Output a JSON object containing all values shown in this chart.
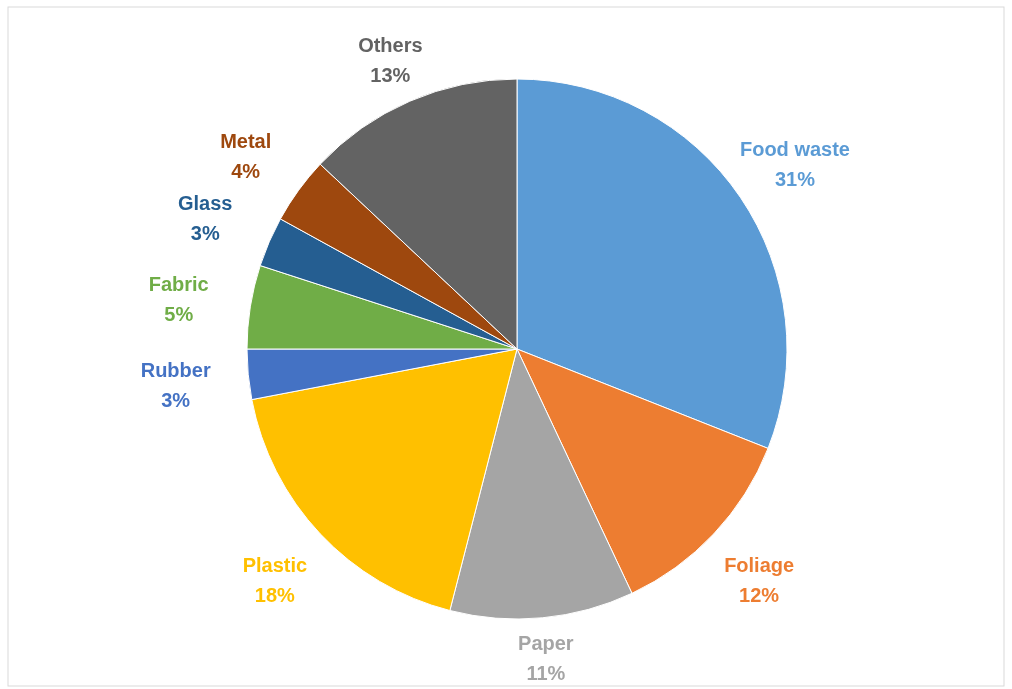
{
  "chart_data": {
    "type": "pie",
    "categories": [
      "Food waste",
      "Foliage",
      "Paper",
      "Plastic",
      "Rubber",
      "Fabric",
      "Glass",
      "Metal",
      "Others"
    ],
    "values": [
      31,
      12,
      11,
      18,
      3,
      5,
      3,
      4,
      13
    ],
    "colors": [
      "#5b9bd5",
      "#ed7d31",
      "#a5a5a5",
      "#ffc000",
      "#4472c4",
      "#70ad47",
      "#255e91",
      "#9e480e",
      "#636363"
    ],
    "value_labels": [
      "31%",
      "12%",
      "11%",
      "18%",
      "3%",
      "5%",
      "3%",
      "4%",
      "13%"
    ],
    "legend": false
  }
}
